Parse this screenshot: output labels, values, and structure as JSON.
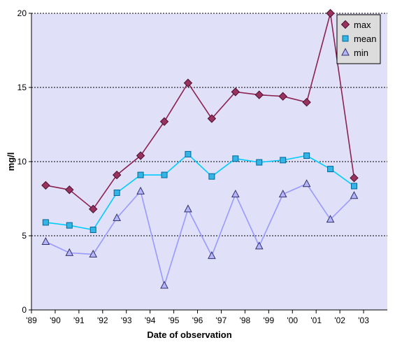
{
  "chart_data": {
    "type": "line",
    "title": "",
    "xlabel": "Date of observation",
    "ylabel": "mg/l",
    "ylim": [
      0,
      20
    ],
    "yticks": [
      0,
      5,
      10,
      15,
      20
    ],
    "xticks": [
      "'89",
      "'90",
      "'91",
      "'92",
      "'93",
      "'94",
      "'95",
      "'96",
      "'97",
      "'98",
      "'99",
      "'00",
      "'01",
      "'02",
      "'03"
    ],
    "xlim": [
      1989,
      2004
    ],
    "grid": "horizontal dotted",
    "legend_position": "top-right",
    "plot_background": "#E0E0F8",
    "x": [
      1989.6,
      1990.6,
      1991.6,
      1992.6,
      1993.6,
      1994.6,
      1995.6,
      1996.6,
      1997.6,
      1998.6,
      1999.6,
      2000.6,
      2001.6,
      2002.6
    ],
    "series": [
      {
        "name": "max",
        "marker": "diamond",
        "color": "#8B2252",
        "fill": "#99335E",
        "values": [
          8.4,
          8.1,
          6.8,
          9.1,
          10.4,
          12.7,
          15.3,
          12.9,
          14.7,
          14.5,
          14.4,
          14.0,
          20.0,
          8.9
        ]
      },
      {
        "name": "mean",
        "marker": "square",
        "color": "#00CCFF",
        "fill": "#33B5E5",
        "values": [
          5.9,
          5.7,
          5.4,
          7.9,
          9.1,
          9.1,
          10.5,
          9.0,
          10.2,
          9.95,
          10.1,
          10.4,
          9.5,
          8.35
        ]
      },
      {
        "name": "min",
        "marker": "triangle",
        "color": "#9999FF",
        "fill": "#B4B4FF",
        "values": [
          4.6,
          3.85,
          3.75,
          6.2,
          8.0,
          1.65,
          6.8,
          3.65,
          7.8,
          4.3,
          7.8,
          8.5,
          6.1,
          7.7
        ]
      }
    ]
  }
}
